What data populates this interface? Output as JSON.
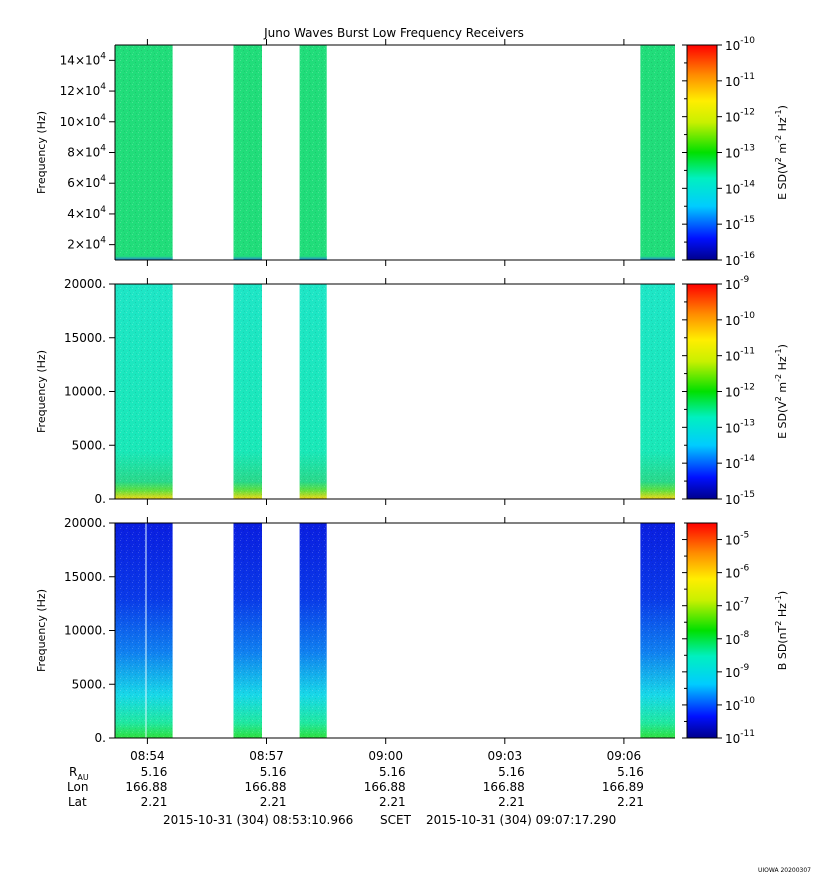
{
  "title": "Juno Waves Burst Low Frequency Receivers",
  "chart_data": [
    {
      "type": "heatmap",
      "panel": "top",
      "ylabel": "Frequency (Hz)",
      "ytick_labels": [
        {
          "value": 140000,
          "base": "14",
          "exp": "4"
        },
        {
          "value": 120000,
          "base": "12",
          "exp": "4"
        },
        {
          "value": 100000,
          "base": "10",
          "exp": "4"
        },
        {
          "value": 80000,
          "base": "8",
          "exp": "4"
        },
        {
          "value": 60000,
          "base": "6",
          "exp": "4"
        },
        {
          "value": 40000,
          "base": "4",
          "exp": "4"
        },
        {
          "value": 20000,
          "base": "2",
          "exp": "4"
        }
      ],
      "ylim": [
        10000,
        150000
      ],
      "colorbar": {
        "label_parts": [
          "E SD(V",
          "2",
          " m",
          "-2",
          " Hz",
          "-1",
          ")"
        ],
        "log_range": [
          -16,
          -10
        ],
        "tick_exponents": [
          "-10",
          "-11",
          "-12",
          "-13",
          "-14",
          "-15",
          "-16"
        ],
        "tick_base": "10"
      },
      "bursts_shade": [
        "#1cdb6e",
        "#22e27a",
        "#1cdb6e",
        "#22e27a"
      ],
      "low_band_color": "#2a8fd8"
    },
    {
      "type": "heatmap",
      "panel": "middle",
      "ylabel": "Frequency (Hz)",
      "ytick_labels": [
        {
          "value": 20000,
          "text": "20000."
        },
        {
          "value": 15000,
          "text": "15000."
        },
        {
          "value": 10000,
          "text": "10000."
        },
        {
          "value": 5000,
          "text": "5000."
        },
        {
          "value": 0,
          "text": "0."
        }
      ],
      "ylim": [
        0,
        20000
      ],
      "colorbar": {
        "label_parts": [
          "E SD(V",
          "2",
          " m",
          "-2",
          " Hz",
          "-1",
          ")"
        ],
        "log_range": [
          -15,
          -9
        ],
        "tick_exponents": [
          "-9",
          "-10",
          "-11",
          "-12",
          "-13",
          "-14",
          "-15"
        ],
        "tick_base": "10"
      },
      "bursts_shade": [
        "#18e8c0",
        "#18e8c0",
        "#18e8c0",
        "#18e8c0"
      ],
      "low_band_color": "#e8d820"
    },
    {
      "type": "heatmap",
      "panel": "bottom",
      "ylabel": "Frequency (Hz)",
      "ytick_labels": [
        {
          "value": 20000,
          "text": "20000."
        },
        {
          "value": 15000,
          "text": "15000."
        },
        {
          "value": 10000,
          "text": "10000."
        },
        {
          "value": 5000,
          "text": "5000."
        },
        {
          "value": 0,
          "text": "0."
        }
      ],
      "ylim": [
        0,
        20000
      ],
      "colorbar": {
        "label_parts": [
          "B SD(nT",
          "2",
          " Hz",
          "-1",
          ")"
        ],
        "log_range": [
          -11,
          -4.5
        ],
        "tick_exponents": [
          "-5",
          "-6",
          "-7",
          "-8",
          "-9",
          "-10",
          "-11"
        ],
        "tick_base": "10"
      },
      "bursts_shade": [
        "#0a30e0",
        "#0a30e0",
        "#0a30e0",
        "#0a30e0"
      ],
      "low_band_color": "#38e060"
    }
  ],
  "time_axis": {
    "start": "08:53:10.966",
    "end": "09:07:17.290",
    "start_seconds": 31990.966,
    "end_seconds": 32837.29,
    "ticks": [
      {
        "label": "08:54",
        "seconds": 32040,
        "r": "5.16",
        "lon": "166.88",
        "lat": "2.21"
      },
      {
        "label": "08:57",
        "seconds": 32220,
        "r": "5.16",
        "lon": "166.88",
        "lat": "2.21"
      },
      {
        "label": "09:00",
        "seconds": 32400,
        "r": "5.16",
        "lon": "166.88",
        "lat": "2.21"
      },
      {
        "label": "09:03",
        "seconds": 32580,
        "r": "5.16",
        "lon": "166.88",
        "lat": "2.21"
      },
      {
        "label": "09:06",
        "seconds": 32760,
        "r": "5.16",
        "lon": "166.89",
        "lat": "2.21"
      }
    ],
    "bursts_seconds": [
      [
        31990.966,
        32078
      ],
      [
        32170,
        32213
      ],
      [
        32270,
        32311
      ],
      [
        32785,
        32837.29
      ]
    ]
  },
  "ephemeris_labels": {
    "r": "R",
    "r_sub": "AU",
    "lon": "Lon",
    "lat": "Lat"
  },
  "footer": {
    "left": "2015-10-31 (304) 08:53:10.966",
    "mid": "SCET",
    "right": "2015-10-31 (304) 09:07:17.290"
  },
  "watermark": "UIOWA 20200307"
}
